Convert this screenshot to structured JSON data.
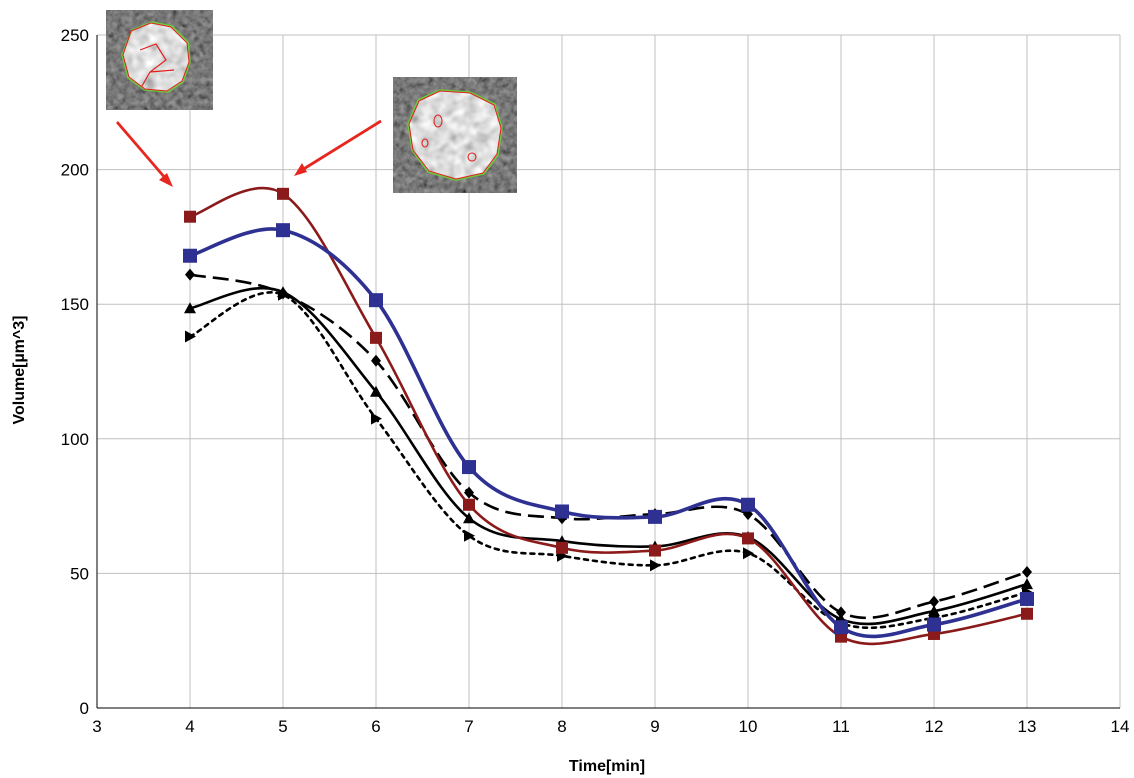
{
  "chart_data": {
    "type": "line",
    "title": "",
    "xlabel": "Time[min]",
    "ylabel": "Volume[µm^3]",
    "xlim": [
      3,
      14
    ],
    "ylim": [
      0,
      250
    ],
    "x_ticks": [
      3,
      4,
      5,
      6,
      7,
      8,
      9,
      10,
      11,
      12,
      13,
      14
    ],
    "y_ticks": [
      0,
      50,
      100,
      150,
      200,
      250
    ],
    "grid": true,
    "legend": "none",
    "x": [
      4,
      5,
      6,
      7,
      8,
      9,
      10,
      11,
      12,
      13
    ],
    "series": [
      {
        "marker": "square",
        "color": "#2e3192",
        "line_style": "solid",
        "values": [
          168,
          177.5,
          151.5,
          89.5,
          73,
          71,
          75.5,
          30,
          31,
          40.5
        ]
      },
      {
        "marker": "square",
        "color": "#8b1a1a",
        "line_style": "solid",
        "values": [
          182.5,
          191,
          137.5,
          75.5,
          59.5,
          58.5,
          63,
          26.5,
          27.5,
          35
        ]
      },
      {
        "marker": "diamond",
        "color": "#000000",
        "line_style": "dashed",
        "values": [
          161,
          154,
          129,
          80,
          70.5,
          72,
          72,
          35.5,
          39.5,
          50.5
        ]
      },
      {
        "marker": "triangle-up",
        "color": "#000000",
        "line_style": "solid",
        "values": [
          148.5,
          154.5,
          117.5,
          70.5,
          62,
          60,
          63.5,
          33,
          36,
          46
        ]
      },
      {
        "marker": "triangle-right",
        "color": "#000000",
        "line_style": "dotted",
        "values": [
          138,
          153.5,
          107.5,
          64,
          56.5,
          53,
          57.5,
          31.5,
          33.5,
          43
        ]
      }
    ],
    "annotations": [
      {
        "type": "inset-image",
        "name": "cell-image-inset-1",
        "points_to_x": 4
      },
      {
        "type": "inset-image",
        "name": "cell-image-inset-2",
        "points_to_x": 5
      }
    ]
  }
}
